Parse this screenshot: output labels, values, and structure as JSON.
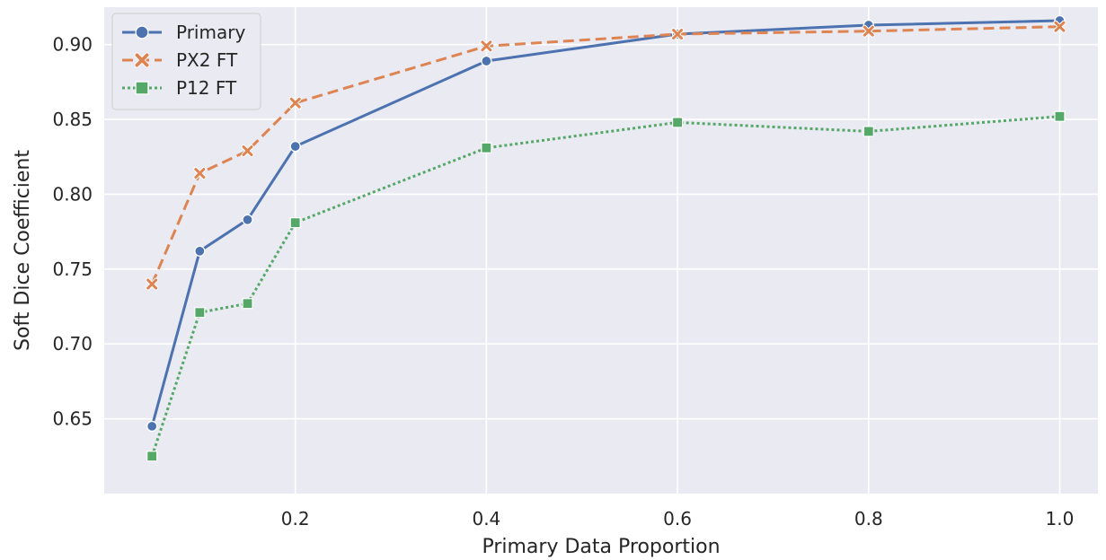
{
  "chart_data": {
    "type": "line",
    "xlabel": "Primary Data Proportion",
    "ylabel": "Soft Dice Coefficient",
    "xlim": [
      0.0,
      1.04
    ],
    "ylim": [
      0.6,
      0.925
    ],
    "xticks": [
      0.2,
      0.4,
      0.6,
      0.8,
      1.0
    ],
    "xtick_labels": [
      "0.2",
      "0.4",
      "0.6",
      "0.8",
      "1.0"
    ],
    "yticks": [
      0.65,
      0.7,
      0.75,
      0.8,
      0.85,
      0.9
    ],
    "ytick_labels": [
      "0.65",
      "0.70",
      "0.75",
      "0.80",
      "0.85",
      "0.90"
    ],
    "grid": true,
    "background": "#eaeaf2",
    "legend_position": "top-left",
    "x": [
      0.05,
      0.1,
      0.15,
      0.2,
      0.4,
      0.6,
      0.8,
      1.0
    ],
    "series": [
      {
        "name": "Primary",
        "color": "#4c72b0",
        "line_style": "solid",
        "marker": "circle",
        "values": [
          0.645,
          0.762,
          0.783,
          0.832,
          0.889,
          0.907,
          0.913,
          0.916
        ]
      },
      {
        "name": "PX2 FT",
        "color": "#dd8452",
        "line_style": "dashed",
        "marker": "x",
        "values": [
          0.74,
          0.814,
          0.829,
          0.861,
          0.899,
          0.907,
          0.909,
          0.912
        ]
      },
      {
        "name": "P12 FT",
        "color": "#55a868",
        "line_style": "dotted",
        "marker": "square",
        "values": [
          0.625,
          0.721,
          0.727,
          0.781,
          0.831,
          0.848,
          0.842,
          0.852
        ]
      }
    ]
  }
}
